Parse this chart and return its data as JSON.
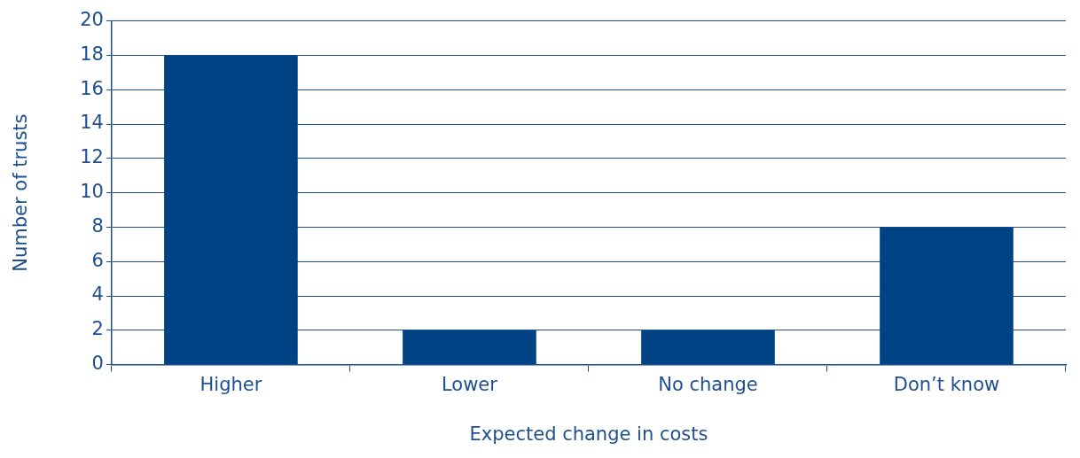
{
  "chart_data": {
    "type": "bar",
    "xlabel": "Expected change in costs",
    "ylabel": "Number of trusts",
    "categories": [
      "Higher",
      "Lower",
      "No change",
      "Don’t know"
    ],
    "values": [
      18,
      2,
      2,
      8
    ],
    "color": "#004385",
    "ylim": [
      0,
      20
    ],
    "yticks": [
      0,
      2,
      4,
      6,
      8,
      10,
      12,
      14,
      16,
      18,
      20
    ],
    "grid": "y",
    "legend": false
  }
}
